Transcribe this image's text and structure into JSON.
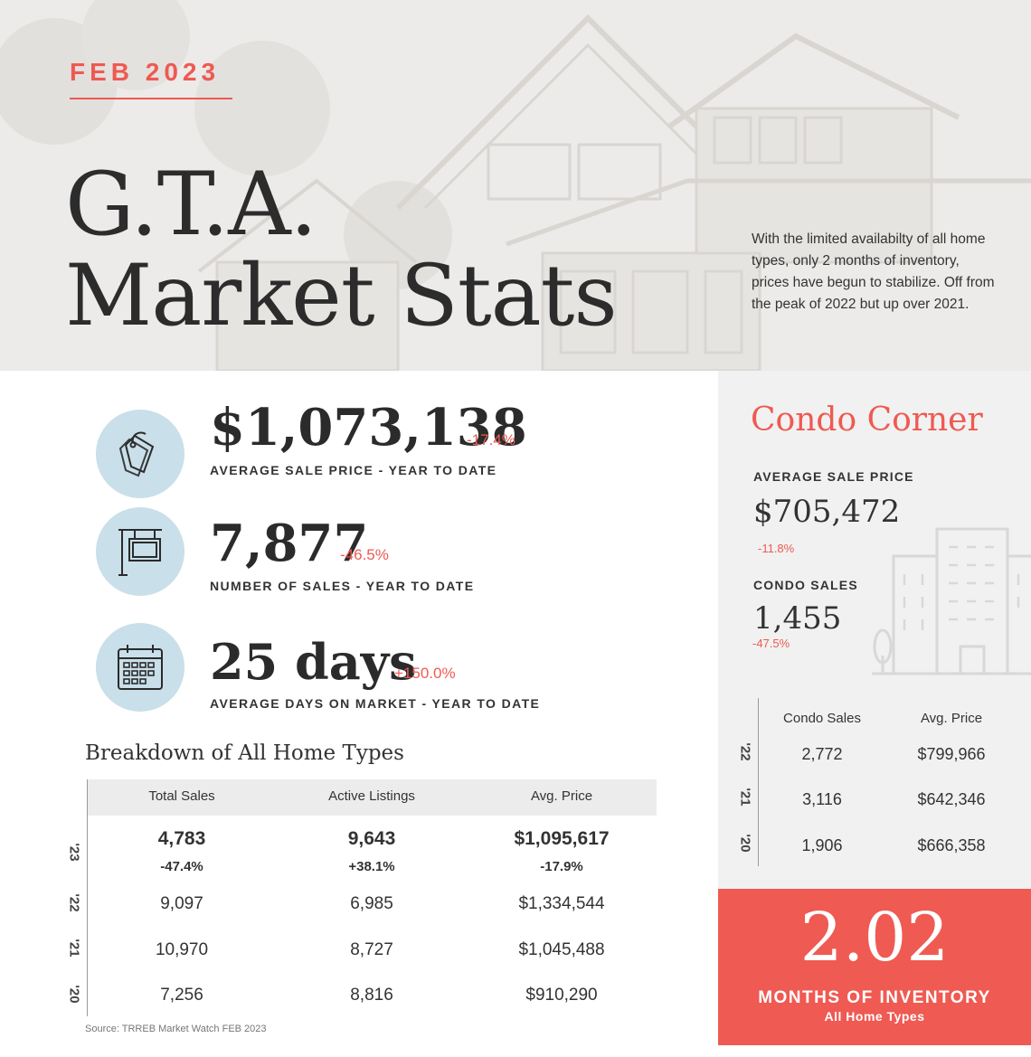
{
  "header": {
    "eyebrow": "FEB 2023",
    "title_line1": "G.T.A.",
    "title_line2": "Market Stats",
    "intro": "With the limited availabilty of all home types, only 2 months of inventory, prices have begun to stabilize.  Off from the peak of 2022 but up over 2021."
  },
  "stats": [
    {
      "icon": "price-tag-icon",
      "value": "$1,073,138",
      "change": "-17.4%",
      "label": "AVERAGE SALE PRICE - YEAR TO DATE"
    },
    {
      "icon": "for-sale-sign-icon",
      "value": "7,877",
      "change": "-46.5%",
      "label": "NUMBER OF SALES - YEAR TO DATE"
    },
    {
      "icon": "calendar-icon",
      "value": "25 days",
      "change": "+150.0%",
      "label": "AVERAGE DAYS ON MARKET - YEAR TO DATE"
    }
  ],
  "breakdown": {
    "title": "Breakdown of All Home Types",
    "headers": [
      "Total Sales",
      "Active Listings",
      "Avg. Price"
    ],
    "rows": [
      {
        "year": "'23",
        "values": [
          "4,783",
          "9,643",
          "$1,095,617"
        ],
        "changes": [
          "-47.4%",
          "+38.1%",
          "-17.9%"
        ]
      },
      {
        "year": "'22",
        "values": [
          "9,097",
          "6,985",
          "$1,334,544"
        ]
      },
      {
        "year": "'21",
        "values": [
          "10,970",
          "8,727",
          "$1,045,488"
        ]
      },
      {
        "year": "'20",
        "values": [
          "7,256",
          "8,816",
          "$910,290"
        ]
      }
    ],
    "source": "Source: TRREB Market Watch FEB 2023"
  },
  "condo": {
    "title": "Condo Corner",
    "avg_price_label": "AVERAGE SALE PRICE",
    "avg_price_value": "$705,472",
    "avg_price_change": "-11.8%",
    "sales_label": "CONDO SALES",
    "sales_value": "1,455",
    "sales_change": "-47.5%",
    "table_headers": [
      "Condo Sales",
      "Avg. Price"
    ],
    "table_rows": [
      {
        "year": "'22",
        "sales": "2,772",
        "price": "$799,966"
      },
      {
        "year": "'21",
        "sales": "3,116",
        "price": "$642,346"
      },
      {
        "year": "'20",
        "sales": "1,906",
        "price": "$666,358"
      }
    ]
  },
  "inventory": {
    "value": "2.02",
    "label": "MONTHS OF INVENTORY",
    "sublabel": "All Home Types"
  },
  "colors": {
    "accent": "#ee5a52",
    "icon_circle": "#c9dfe9",
    "header_bg": "#ecebe9",
    "panel_bg": "#f1f1f1"
  }
}
